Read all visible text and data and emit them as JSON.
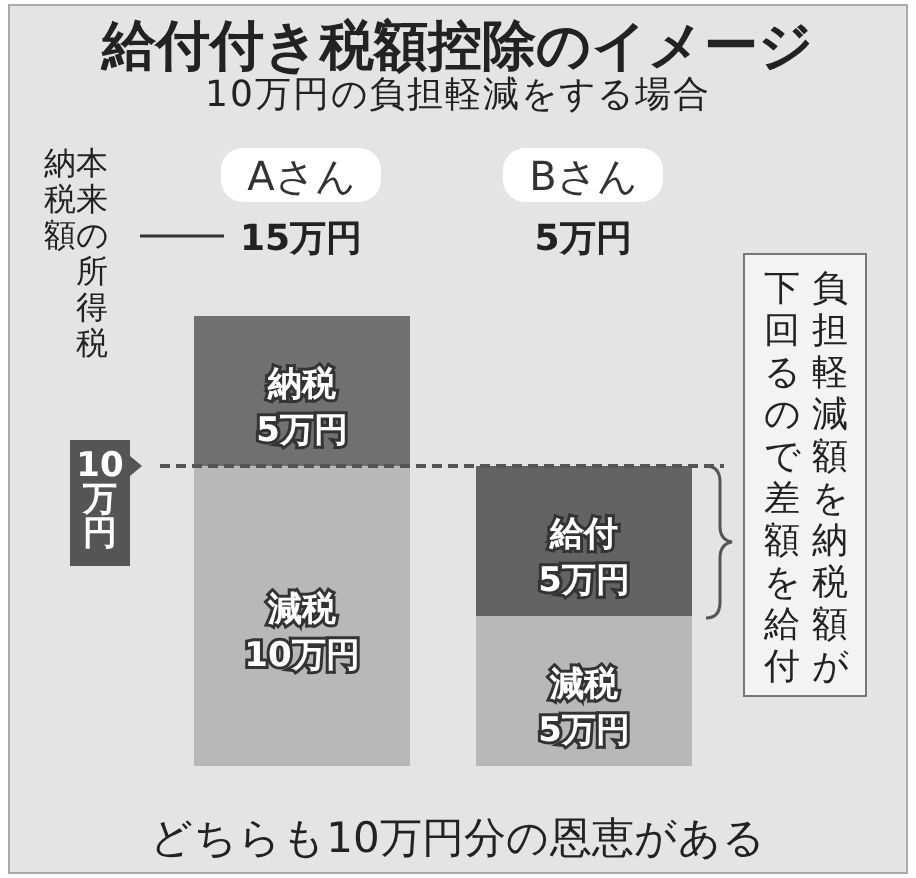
{
  "chart_data": {
    "type": "bar",
    "title": "給付付き税額控除のイメージ",
    "subtitle": "10万円の負担軽減をする場合",
    "categories": [
      "Aさん",
      "Bさん"
    ],
    "stacked": true,
    "tick_labels": "x",
    "series": [
      {
        "name": "減税",
        "color": "#b8b8b8",
        "values": [
          10,
          5
        ],
        "value_labels": [
          "10万円",
          "5万円"
        ]
      },
      {
        "name": "納税",
        "color": "#707070",
        "values": [
          5,
          null
        ],
        "value_labels": [
          "5万円",
          null
        ]
      },
      {
        "name": "給付",
        "color": "#636363",
        "values": [
          null,
          5
        ],
        "value_labels": [
          null,
          "5万円"
        ]
      }
    ],
    "ref_lines": [
      {
        "axis": "y",
        "value": 10,
        "label": "10万円",
        "color": "#555555",
        "line_style": "dashed"
      }
    ],
    "annotations": [
      "本来の所得税納税額",
      "15万円",
      "5万円",
      "負担軽減額を納税額が下回るので差額を給付",
      "どちらも10万円分の恩恵がある"
    ]
  }
}
